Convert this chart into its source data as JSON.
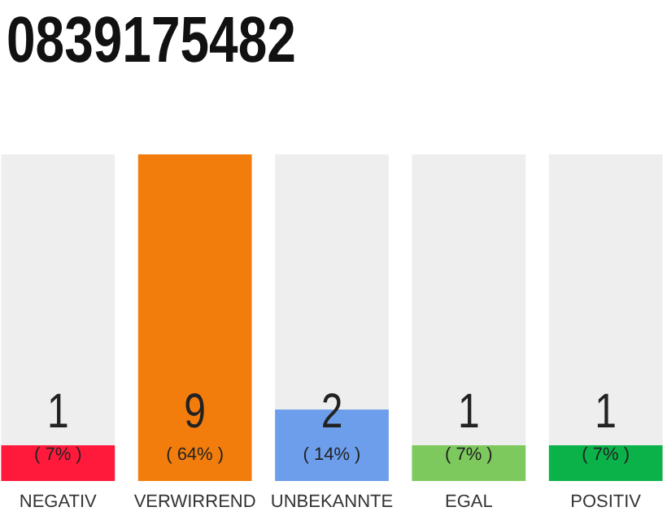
{
  "chart_data": {
    "type": "bar",
    "title": "0839175482",
    "categories": [
      "NEGATIV",
      "VERWIRREND",
      "UNBEKANNTE",
      "EGAL",
      "POSITIV"
    ],
    "values": [
      7,
      64,
      14,
      7,
      7
    ],
    "colors": [
      "#ff1a3c",
      "#f27d0c",
      "#6d9eeb",
      "#7dc95e",
      "#0bb24a"
    ],
    "value_labels": [
      "( 7% )",
      "( 64% )",
      "( 14% )",
      "( 7% )",
      "( 7% )"
    ],
    "annotations": [
      "1",
      "9",
      "2",
      "1",
      "1"
    ]
  }
}
